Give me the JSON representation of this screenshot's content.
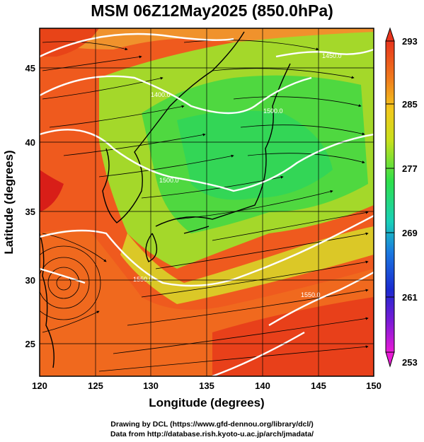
{
  "title": "MSM 06Z12May2025 (850.0hPa)",
  "x_axis": {
    "label": "Longitude (degrees)",
    "ticks": [
      "120",
      "125",
      "130",
      "135",
      "140",
      "145",
      "150"
    ]
  },
  "y_axis": {
    "label": "Latitude  (degrees)",
    "ticks": [
      "25",
      "30",
      "35",
      "40",
      "45"
    ]
  },
  "colorbar": {
    "ticks": [
      "293",
      "285",
      "277",
      "269",
      "261",
      "253"
    ]
  },
  "contours": {
    "labels": [
      "1400.0",
      "1450.0",
      "1500.0",
      "1550.0",
      "1550.0",
      "1500.0"
    ]
  },
  "credits": {
    "line1": "Drawing by DCL (https://www.gfd-dennou.org/library/dcl/)",
    "line2": "Data from http://database.rish.kyoto-u.ac.jp/arch/jmadata/"
  },
  "colors": {
    "warm": "#e84a1c",
    "mid": "#9bd62a",
    "cool": "#2fd64b",
    "contour": "#ffffff"
  }
}
